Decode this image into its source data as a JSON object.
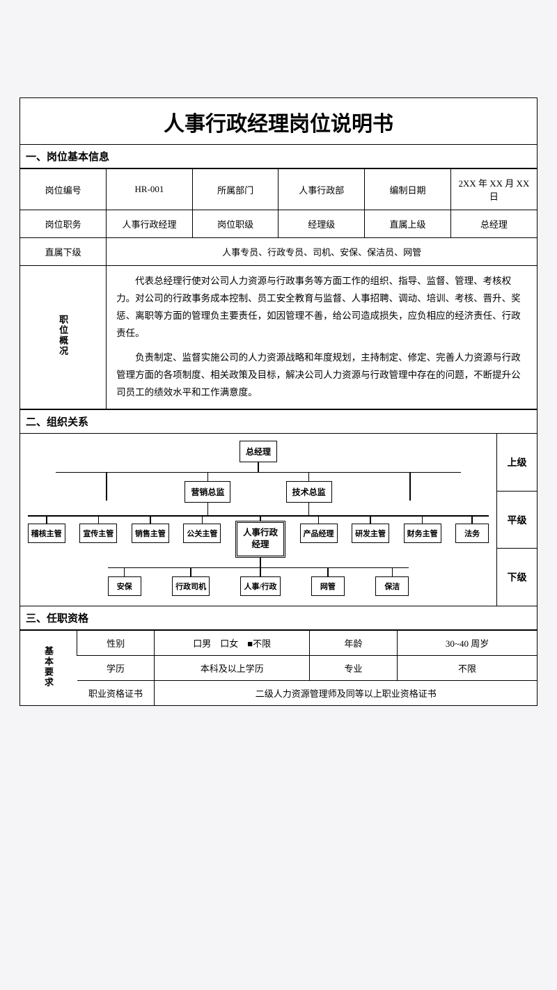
{
  "title": "人事行政经理岗位说明书",
  "section1": "一、岗位基本信息",
  "section2": "二、组织关系",
  "section3": "三、任职资格",
  "basic": {
    "r1": {
      "l1": "岗位编号",
      "v1": "HR-001",
      "l2": "所属部门",
      "v2": "人事行政部",
      "l3": "编制日期",
      "v3": "2XX 年 XX 月 XX 日"
    },
    "r2": {
      "l1": "岗位职务",
      "v1": "人事行政经理",
      "l2": "岗位职级",
      "v2": "经理级",
      "l3": "直属上级",
      "v3": "总经理"
    },
    "r3": {
      "l1": "直属下级",
      "v1": "人事专员、行政专员、司机、安保、保洁员、网管"
    },
    "overview_label": "职位概况",
    "overview_p1": "代表总经理行使对公司人力资源与行政事务等方面工作的组织、指导、监督、管理、考核权力。对公司的行政事务成本控制、员工安全教育与监督、人事招聘、调动、培训、考核、晋升、奖惩、离职等方面的管理负主要责任，如因管理不善，给公司造成损失，应负相应的经济责任、行政责任。",
    "overview_p2": "负责制定、监督实施公司的人力资源战略和年度规划，主持制定、修定、完善人力资源与行政管理方面的各项制度、相关政策及目标，解决公司人力资源与行政管理中存在的问题，不断提升公司员工的绩效水平和工作满意度。"
  },
  "org": {
    "side": {
      "up": "上级",
      "peer": "平级",
      "down": "下级"
    },
    "top": "总经理",
    "l2": {
      "a": "营销总监",
      "b": "技术总监"
    },
    "focus": "人事行政\n经理",
    "peers": {
      "p0": "稽核主管",
      "p1": "宣传主管",
      "p2": "销售主管",
      "p3": "公关主管",
      "p4": "产品经理",
      "p5": "研发主管",
      "p6": "财务主管",
      "p7": "法务"
    },
    "subs": {
      "s0": "安保",
      "s1": "行政司机",
      "s2": "人事/行政",
      "s3": "网管",
      "s4": "保洁"
    }
  },
  "qual": {
    "side": "基本要求",
    "r1": {
      "l1": "性别",
      "v1": "口男　口女　■不限",
      "l2": "年龄",
      "v2": "30~40 周岁"
    },
    "r2": {
      "l1": "学历",
      "v1": "本科及以上学历",
      "l2": "专业",
      "v2": "不限"
    },
    "r3": {
      "l1": "职业资格证书",
      "v1": "二级人力资源管理师及同等以上职业资格证书"
    }
  }
}
